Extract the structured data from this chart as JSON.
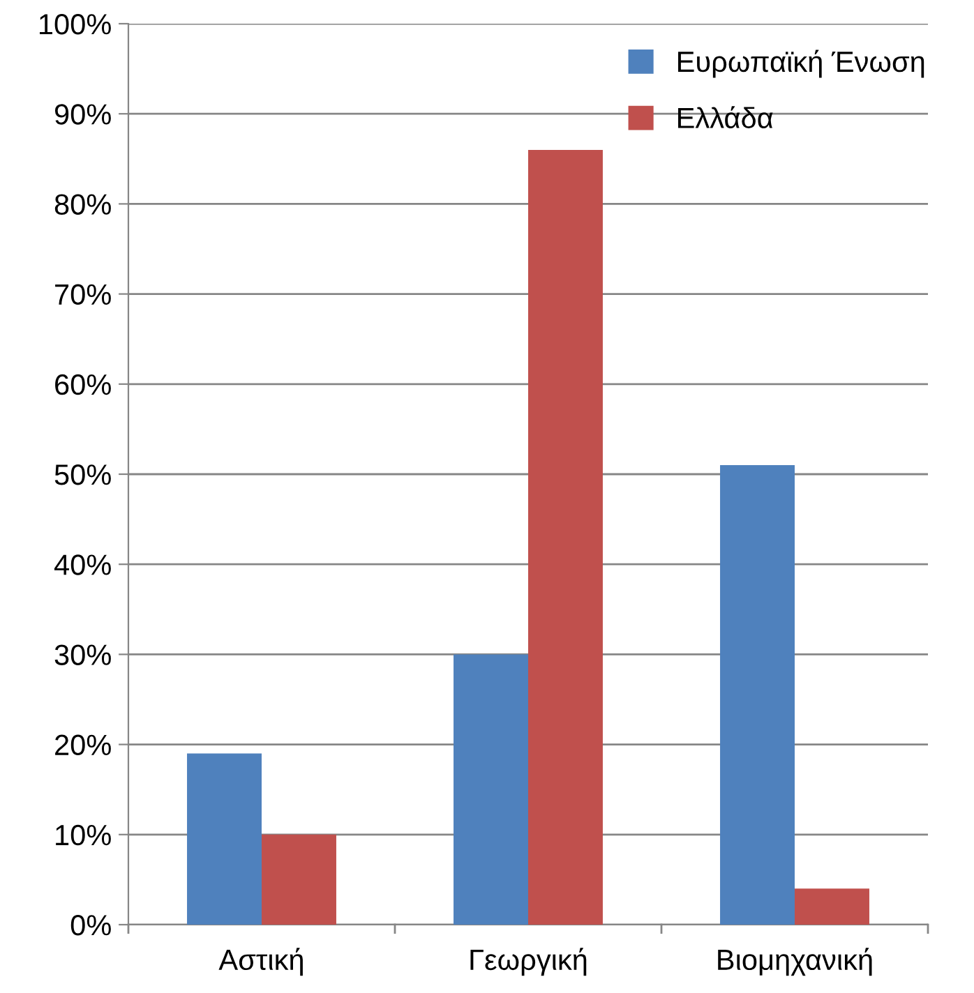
{
  "chart_data": {
    "type": "bar",
    "categories": [
      "Αστική",
      "Γεωργική",
      "Βιομηχανική"
    ],
    "series": [
      {
        "name": "Ευρωπαϊκή Ένωση",
        "color": "#4f81bd",
        "values": [
          19,
          30,
          51
        ]
      },
      {
        "name": "Ελλάδα",
        "color": "#c0504d",
        "values": [
          10,
          86,
          4
        ]
      }
    ],
    "ylim": [
      0,
      100
    ],
    "yticks": [
      {
        "value": 0,
        "label": "0%"
      },
      {
        "value": 10,
        "label": "10%"
      },
      {
        "value": 20,
        "label": "20%"
      },
      {
        "value": 30,
        "label": "30%"
      },
      {
        "value": 40,
        "label": "40%"
      },
      {
        "value": 50,
        "label": "50%"
      },
      {
        "value": 60,
        "label": "60%"
      },
      {
        "value": 70,
        "label": "70%"
      },
      {
        "value": 80,
        "label": "80%"
      },
      {
        "value": 90,
        "label": "90%"
      },
      {
        "value": 100,
        "label": "100%"
      }
    ],
    "grid": "y",
    "legend": "top right"
  }
}
